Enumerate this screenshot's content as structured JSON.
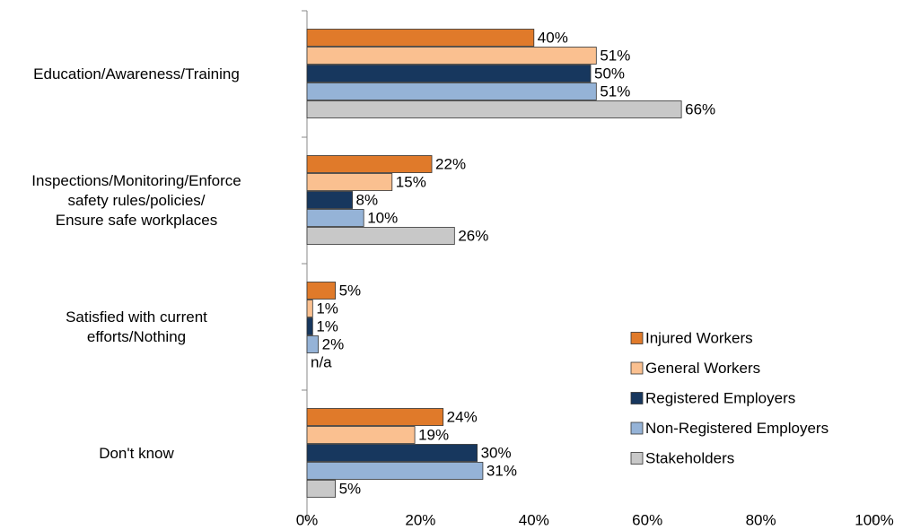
{
  "chart_data": {
    "type": "hbar",
    "categories": [
      "Education/Awareness/Training",
      "Inspections/Monitoring/Enforce\nsafety rules/policies/\nEnsure safe workplaces",
      "Satisfied with current\nefforts/Nothing",
      "Don't know"
    ],
    "series": [
      {
        "name": "Injured Workers",
        "color": "#e07a2a",
        "values": [
          40,
          22,
          5,
          24
        ],
        "value_labels": [
          "40%",
          "22%",
          "5%",
          "24%"
        ]
      },
      {
        "name": "General Workers",
        "color": "#fac090",
        "values": [
          51,
          15,
          1,
          19
        ],
        "value_labels": [
          "51%",
          "15%",
          "1%",
          "19%"
        ]
      },
      {
        "name": "Registered Employers",
        "color": "#17375e",
        "values": [
          50,
          8,
          1,
          30
        ],
        "value_labels": [
          "50%",
          "8%",
          "1%",
          "30%"
        ]
      },
      {
        "name": "Non-Registered Employers",
        "color": "#95b3d7",
        "values": [
          51,
          10,
          2,
          31
        ],
        "value_labels": [
          "51%",
          "10%",
          "2%",
          "31%"
        ]
      },
      {
        "name": "Stakeholders",
        "color": "#c8c8c8",
        "values": [
          66,
          26,
          null,
          5
        ],
        "value_labels": [
          "66%",
          "26%",
          "n/a",
          "5%"
        ]
      }
    ],
    "xlim": [
      0,
      100
    ],
    "xticks": [
      {
        "value": 0,
        "label": "0%"
      },
      {
        "value": 20,
        "label": "20%"
      },
      {
        "value": 40,
        "label": "40%"
      },
      {
        "value": 60,
        "label": "60%"
      },
      {
        "value": 80,
        "label": "80%"
      },
      {
        "value": 100,
        "label": "100%"
      }
    ],
    "legend": "lower right"
  }
}
